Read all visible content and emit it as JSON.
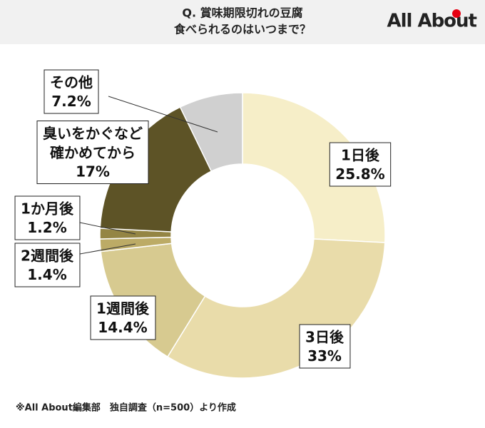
{
  "chart_data": {
    "type": "donut",
    "title": [
      "Q. 賞味期限切れの豆腐",
      "食べられるのはいつまで？"
    ],
    "logo": "All About",
    "note": "※All About編集部　独自調査（n=500）より作成",
    "categories": [
      "1日後",
      "3日後",
      "1週間後",
      "2週間後",
      "1か月後",
      "臭いをかぐなど\n確かめてから",
      "その他"
    ],
    "values": [
      25.8,
      33,
      14.4,
      1.4,
      1.2,
      17,
      7.2
    ],
    "value_labels": [
      "25.8%",
      "33%",
      "14.4%",
      "1.4%",
      "1.2%",
      "17%",
      "7.2%"
    ],
    "colors": [
      "#f6eec8",
      "#e9dcaa",
      "#d7ca90",
      "#bcab66",
      "#948544",
      "#5d5326",
      "#d0d0d0"
    ]
  }
}
